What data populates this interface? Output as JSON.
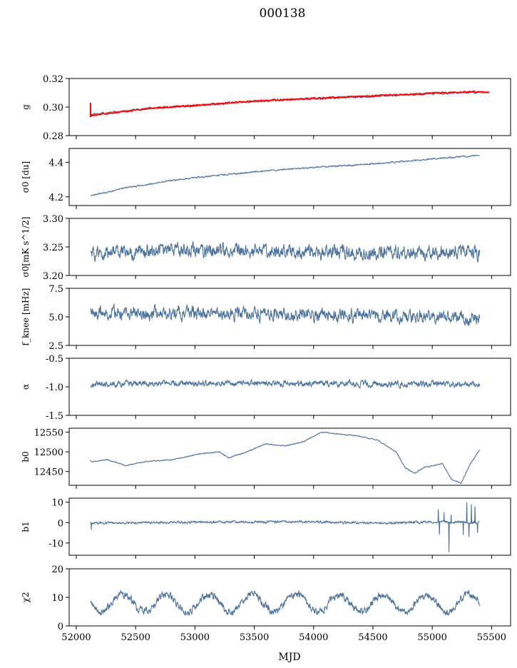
{
  "title": "000138",
  "xlabel": "MJD",
  "colors": {
    "series": "#4c72a0",
    "fit": "#ff0000",
    "axis": "#000000"
  },
  "chart_data": [
    {
      "type": "line",
      "ylabel": "g",
      "ylim": [
        0.28,
        0.32
      ],
      "yticks": [
        "0.28",
        "0.30",
        "0.32"
      ],
      "yvals": [
        0.28,
        0.3,
        0.32
      ],
      "series": [
        {
          "kind": "noisy",
          "trend": [
            [
              52120,
              0.2945
            ],
            [
              52300,
              0.296
            ],
            [
              52600,
              0.299
            ],
            [
              53000,
              0.301
            ],
            [
              53500,
              0.304
            ],
            [
              54000,
              0.306
            ],
            [
              54500,
              0.3075
            ],
            [
              55000,
              0.3095
            ],
            [
              55400,
              0.3105
            ]
          ],
          "amp": 0.0007,
          "seed": 11
        },
        {
          "name_hidden": "fit",
          "kind": "fit",
          "trend": [
            [
              52120,
              0.294
            ],
            [
              52300,
              0.2958
            ],
            [
              52600,
              0.299
            ],
            [
              53000,
              0.3012
            ],
            [
              53500,
              0.3042
            ],
            [
              54000,
              0.306
            ],
            [
              54500,
              0.3078
            ],
            [
              55000,
              0.3097
            ],
            [
              55350,
              0.3108
            ],
            [
              55480,
              0.3104
            ]
          ],
          "amp": 0.0005,
          "seed": 21
        }
      ]
    },
    {
      "type": "line",
      "ylabel": "σ0 [du]",
      "ylim": [
        4.15,
        4.48
      ],
      "yticks": [
        "4.2",
        "4.4"
      ],
      "yvals": [
        4.2,
        4.4
      ],
      "series": [
        {
          "kind": "noisy",
          "trend": [
            [
              52120,
              4.205
            ],
            [
              52400,
              4.25
            ],
            [
              52800,
              4.295
            ],
            [
              53200,
              4.325
            ],
            [
              53600,
              4.35
            ],
            [
              54000,
              4.37
            ],
            [
              54500,
              4.39
            ],
            [
              55000,
              4.42
            ],
            [
              55400,
              4.44
            ]
          ],
          "amp": 0.004,
          "seed": 3
        }
      ]
    },
    {
      "type": "line",
      "ylabel": "σ0[mK s^1/2]",
      "ylim": [
        3.2,
        3.3
      ],
      "yticks": [
        "3.20",
        "3.25",
        "3.30"
      ],
      "yvals": [
        3.2,
        3.25,
        3.3
      ],
      "series": [
        {
          "kind": "noisy",
          "trend": [
            [
              52120,
              3.238
            ],
            [
              52800,
              3.245
            ],
            [
              53500,
              3.243
            ],
            [
              54200,
              3.24
            ],
            [
              55400,
              3.24
            ]
          ],
          "amp": 0.012,
          "seed": 5
        }
      ]
    },
    {
      "type": "line",
      "ylabel": "f_knee [mHz]",
      "ylim": [
        2.5,
        7.5
      ],
      "yticks": [
        "2.5",
        "5.0",
        "7.5"
      ],
      "yvals": [
        2.5,
        5.0,
        7.5
      ],
      "series": [
        {
          "kind": "noisy",
          "trend": [
            [
              52120,
              5.4
            ],
            [
              53000,
              5.3
            ],
            [
              54000,
              5.2
            ],
            [
              55400,
              4.9
            ]
          ],
          "amp": 0.55,
          "seed": 7
        }
      ]
    },
    {
      "type": "line",
      "ylabel": "α",
      "ylim": [
        -1.5,
        -0.5
      ],
      "yticks": [
        "-1.5",
        "-1.0",
        "-0.5"
      ],
      "yvals": [
        -1.5,
        -1.0,
        -0.5
      ],
      "series": [
        {
          "kind": "noisy",
          "trend": [
            [
              52120,
              -0.95
            ],
            [
              53500,
              -0.94
            ],
            [
              55400,
              -0.96
            ]
          ],
          "amp": 0.05,
          "seed": 9
        }
      ]
    },
    {
      "type": "line",
      "ylabel": "b0",
      "ylim": [
        12415,
        12560
      ],
      "yticks": [
        "12450",
        "12500",
        "12550"
      ],
      "yvals": [
        12450,
        12500,
        12550
      ],
      "series": [
        {
          "kind": "noisy",
          "trend": [
            [
              52120,
              12480
            ],
            [
              52130,
              12475
            ],
            [
              52300,
              12480
            ],
            [
              52500,
              12465
            ],
            [
              52700,
              12475
            ],
            [
              53000,
              12480
            ],
            [
              53300,
              12495
            ],
            [
              53500,
              12500
            ],
            [
              53600,
              12485
            ],
            [
              53800,
              12500
            ],
            [
              54000,
              12520
            ],
            [
              54200,
              12515
            ],
            [
              54400,
              12525
            ],
            [
              54600,
              12550
            ],
            [
              54800,
              12545
            ],
            [
              55000,
              12540
            ],
            [
              55200,
              12530
            ],
            [
              55400,
              12500
            ],
            [
              55500,
              12460
            ],
            [
              55600,
              12445
            ],
            [
              55700,
              12460
            ],
            [
              55800,
              12465
            ],
            [
              55900,
              12470
            ],
            [
              56000,
              12430
            ],
            [
              56100,
              12420
            ],
            [
              56200,
              12470
            ],
            [
              56300,
              12505
            ]
          ],
          "amp": 1.2,
          "seed": 13,
          "xscale": [
            52120,
            56300,
            52120,
            55400
          ]
        }
      ]
    },
    {
      "type": "line",
      "ylabel": "b1",
      "ylim": [
        -16,
        12
      ],
      "yticks": [
        "-10",
        "0",
        "10"
      ],
      "yvals": [
        -10,
        0,
        10
      ],
      "series": [
        {
          "kind": "noisy",
          "trend": [
            [
              52120,
              -0.2
            ],
            [
              53000,
              0.2
            ],
            [
              54000,
              0.4
            ],
            [
              54600,
              -0.3
            ],
            [
              55000,
              0.3
            ],
            [
              55400,
              0.1
            ]
          ],
          "amp": 0.55,
          "seed": 17,
          "spikes": [
            [
              52125,
              -3.5
            ],
            [
              55050,
              6.5
            ],
            [
              55060,
              -6
            ],
            [
              55100,
              5
            ],
            [
              55140,
              -14.5
            ],
            [
              55160,
              4
            ],
            [
              55260,
              -6
            ],
            [
              55290,
              10
            ],
            [
              55310,
              -7
            ],
            [
              55330,
              9
            ],
            [
              55360,
              8
            ],
            [
              55380,
              -5
            ]
          ]
        }
      ]
    },
    {
      "type": "line",
      "ylabel": "χ2",
      "ylim": [
        0,
        20
      ],
      "yticks": [
        "0",
        "10",
        "20"
      ],
      "yvals": [
        0,
        10,
        20
      ],
      "series": [
        {
          "kind": "seasonal",
          "base": 8,
          "samp": 3,
          "period": 365.25,
          "phase": 52300,
          "amp": 1.3,
          "seed": 19
        }
      ]
    }
  ],
  "xaxis": {
    "xlim": [
      51940,
      55660
    ],
    "ticks": [
      "52000",
      "52500",
      "53000",
      "53500",
      "54000",
      "54500",
      "55000",
      "55500"
    ],
    "tickvals": [
      52000,
      52500,
      53000,
      53500,
      54000,
      54500,
      55000,
      55500
    ]
  }
}
